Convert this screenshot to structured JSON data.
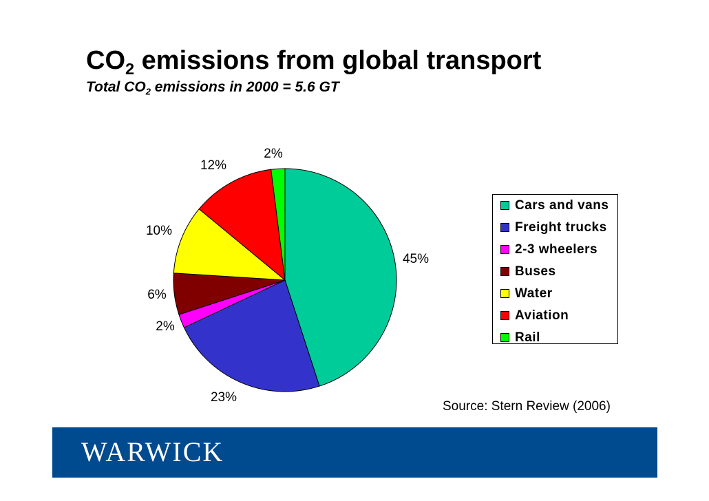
{
  "header": {
    "title_prefix": "CO",
    "title_sub": "2",
    "title_rest": " emissions from global transport",
    "subtitle_prefix": "Total CO",
    "subtitle_sub": "2",
    "subtitle_rest": " emissions in 2000 = 5.6 GT"
  },
  "chart_data": {
    "type": "pie",
    "title": "CO2 emissions from global transport",
    "subtitle": "Total CO2 emissions in 2000 = 5.6 GT",
    "unit": "%",
    "categories": [
      "Cars and vans",
      "Freight trucks",
      "2-3 wheelers",
      "Buses",
      "Water",
      "Aviation",
      "Rail"
    ],
    "values": [
      45,
      23,
      2,
      6,
      10,
      12,
      2
    ],
    "labels": [
      "45%",
      "23%",
      "2%",
      "6%",
      "10%",
      "12%",
      "2%"
    ],
    "colors": [
      "#00cc99",
      "#3333cc",
      "#ff00ff",
      "#800000",
      "#ffff00",
      "#ff0000",
      "#00ff00"
    ],
    "legend_position": "right"
  },
  "source": "Source: Stern Review (2006)",
  "footer": {
    "logo_text": "WARWICK",
    "color": "#004a8f"
  }
}
